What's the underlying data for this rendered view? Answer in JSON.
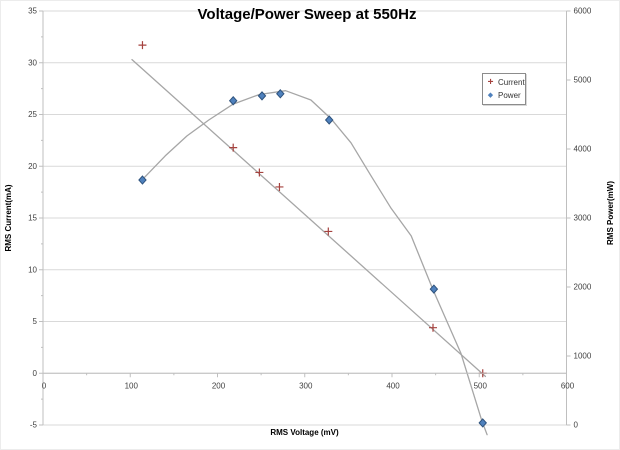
{
  "chart_data": {
    "type": "scatter",
    "title": "Voltage/Power Sweep at 550Hz",
    "xlabel": "RMS Voltage (mV)",
    "ylabel_left": "RMS Current(mA)",
    "ylabel_right": "RMS Power(mW)",
    "xlim": [
      0,
      600
    ],
    "ylim_left": [
      -5,
      35
    ],
    "ylim_right": [
      0,
      6000
    ],
    "x_ticks": [
      0,
      100,
      200,
      300,
      400,
      500,
      600
    ],
    "y_left_ticks": [
      35,
      30,
      25,
      20,
      15,
      10,
      5,
      0,
      -5
    ],
    "y_right_ticks": [
      6000,
      5000,
      4000,
      3000,
      2000,
      1000,
      0
    ],
    "grid": "horizontal",
    "legend_position": "inside-top-right",
    "series": [
      {
        "name": "Current",
        "axis": "left",
        "marker": "plus",
        "color": "#A5423E",
        "points": [
          [
            114,
            31.7
          ],
          [
            218,
            21.8
          ],
          [
            248,
            19.4
          ],
          [
            271,
            18.0
          ],
          [
            327,
            13.7
          ],
          [
            447,
            4.4
          ],
          [
            504,
            0.0
          ]
        ],
        "trend": [
          [
            102,
            30.3
          ],
          [
            507,
            -0.3
          ]
        ]
      },
      {
        "name": "Power",
        "axis": "right",
        "marker": "diamond",
        "color": "#4F81BD",
        "marker_stroke": "#2E527C",
        "points": [
          [
            114,
            3550
          ],
          [
            218,
            4700
          ],
          [
            251,
            4770
          ],
          [
            272,
            4800
          ],
          [
            328,
            4420
          ],
          [
            448,
            1970
          ],
          [
            504,
            30
          ]
        ],
        "trend": [
          [
            114,
            3560
          ],
          [
            140,
            3900
          ],
          [
            165,
            4190
          ],
          [
            190,
            4420
          ],
          [
            218,
            4650
          ],
          [
            248,
            4790
          ],
          [
            278,
            4845
          ],
          [
            307,
            4710
          ],
          [
            330,
            4440
          ],
          [
            353,
            4090
          ],
          [
            376,
            3610
          ],
          [
            399,
            3140
          ],
          [
            422,
            2740
          ],
          [
            447,
            1960
          ],
          [
            479,
            1040
          ],
          [
            503,
            60
          ],
          [
            509,
            -140
          ]
        ]
      }
    ],
    "colors": {
      "gridline": "#D9D9D9",
      "axis_line": "#BFBFBF",
      "tick_text": "#3F3F3F",
      "trendline": "#A6A6A6",
      "title_text": "#000000",
      "legend_border": "#8C8C8C"
    }
  }
}
